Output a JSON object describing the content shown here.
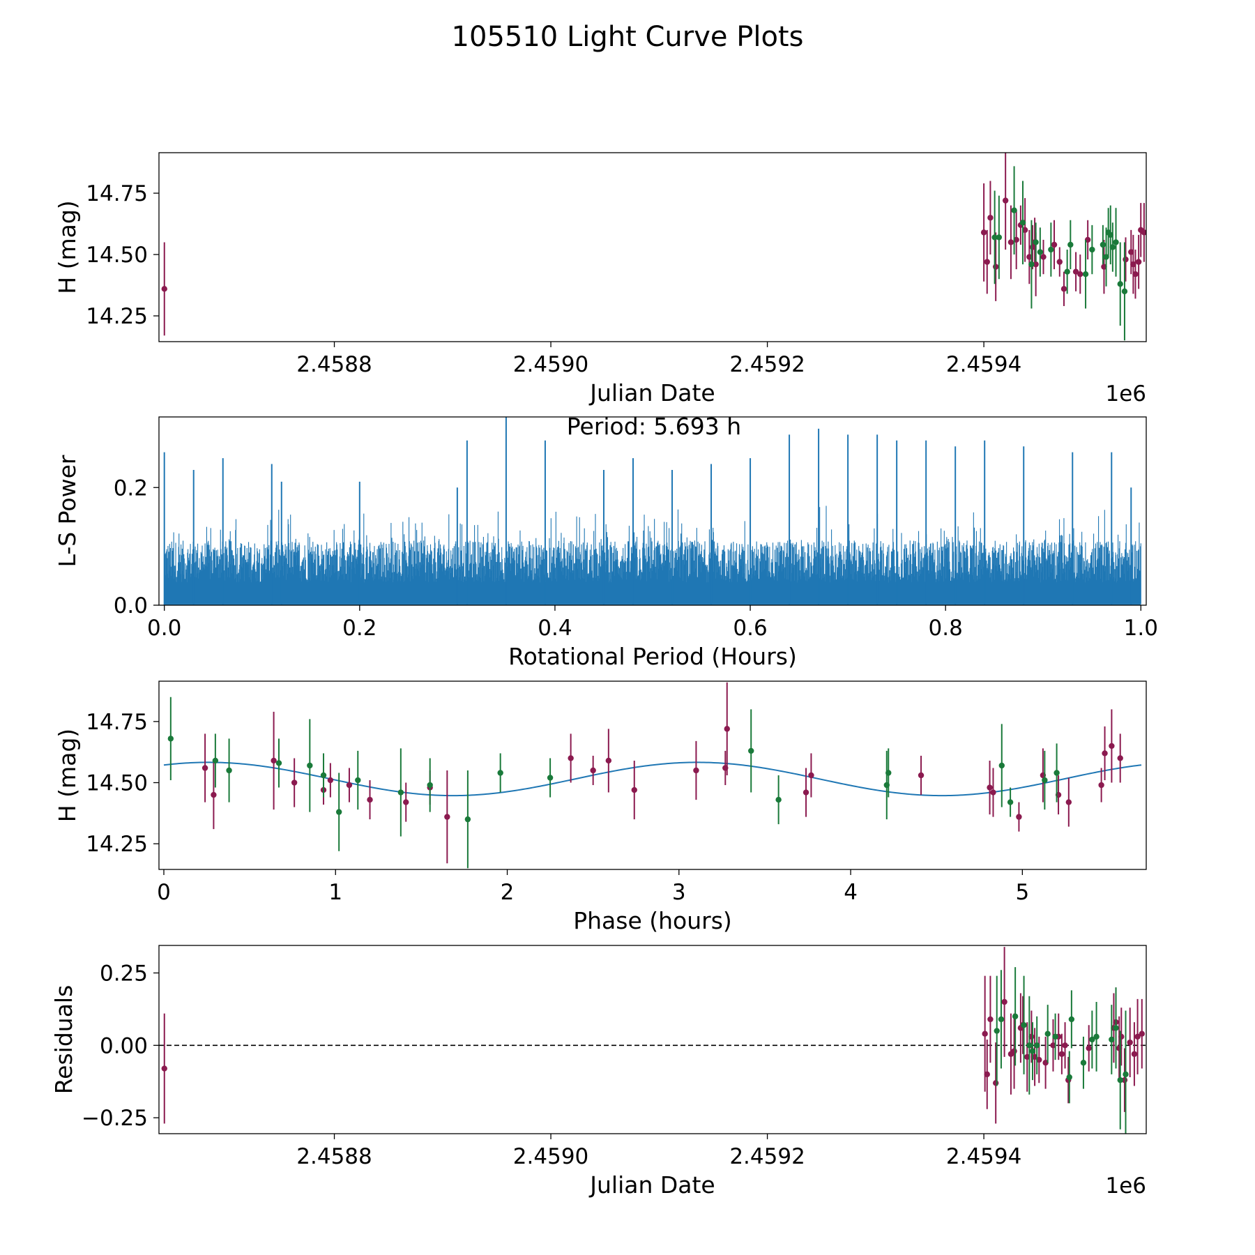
{
  "figure_title": "105510 Light Curve Plots",
  "colors": {
    "band_a": "#8b1a4f",
    "band_b": "#1a7a3a",
    "periodogram": "#1f77b4",
    "fit": "#1f77b4",
    "axes": "#000000"
  },
  "chart_data": [
    {
      "id": "lightcurve",
      "type": "scatter",
      "title": "",
      "xlabel": "Julian Date",
      "ylabel": "H (mag)",
      "x_offset_label": "1e6",
      "xlim": [
        2458638.0,
        2459550.0
      ],
      "ylim": [
        14.145,
        14.915
      ],
      "xticks": [
        2458800,
        2459000,
        2459200,
        2459400
      ],
      "xtick_labels": [
        "2.4588",
        "2.4590",
        "2.4592",
        "2.4594"
      ],
      "yticks": [
        14.25,
        14.5,
        14.75
      ],
      "ytick_labels": [
        "14.25",
        "14.50",
        "14.75"
      ],
      "series": [
        {
          "name": "band_a",
          "color": "#8b1a4f",
          "x": [
            2458643,
            2459400,
            2459403,
            2459406,
            2459411,
            2459420,
            2459425,
            2459430,
            2459434,
            2459438,
            2459442,
            2459445,
            2459447,
            2459448,
            2459455,
            2459465,
            2459470,
            2459474,
            2459485,
            2459489,
            2459496,
            2459511,
            2459531,
            2459536,
            2459538,
            2459540,
            2459543,
            2459545,
            2459548
          ],
          "y": [
            14.36,
            14.59,
            14.47,
            14.65,
            14.45,
            14.72,
            14.55,
            14.56,
            14.62,
            14.6,
            14.49,
            14.53,
            14.55,
            14.46,
            14.49,
            14.54,
            14.47,
            14.36,
            14.43,
            14.42,
            14.56,
            14.45,
            14.48,
            14.51,
            14.46,
            14.42,
            14.47,
            14.6,
            14.59
          ],
          "yerr": [
            0.19,
            0.2,
            0.13,
            0.15,
            0.14,
            0.2,
            0.15,
            0.12,
            0.08,
            0.13,
            0.11,
            0.09,
            0.1,
            0.13,
            0.07,
            0.1,
            0.06,
            0.07,
            0.08,
            0.08,
            0.08,
            0.11,
            0.09,
            0.09,
            0.12,
            0.1,
            0.11,
            0.11,
            0.12
          ]
        },
        {
          "name": "band_b",
          "color": "#1a7a3a",
          "x": [
            2459410,
            2459414,
            2459428,
            2459436,
            2459444,
            2459448,
            2459452,
            2459462,
            2459477,
            2459480,
            2459494,
            2459500,
            2459510,
            2459513,
            2459515,
            2459517,
            2459519,
            2459522,
            2459526,
            2459530
          ],
          "y": [
            14.57,
            14.57,
            14.68,
            14.63,
            14.46,
            14.55,
            14.51,
            14.52,
            14.43,
            14.54,
            14.42,
            14.52,
            14.54,
            14.49,
            14.59,
            14.58,
            14.53,
            14.55,
            14.38,
            14.35
          ],
          "yerr": [
            0.19,
            0.17,
            0.18,
            0.17,
            0.18,
            0.08,
            0.1,
            0.11,
            0.09,
            0.1,
            0.14,
            0.1,
            0.08,
            0.12,
            0.1,
            0.12,
            0.1,
            0.14,
            0.17,
            0.2
          ]
        }
      ]
    },
    {
      "id": "periodogram",
      "type": "line",
      "title": "Period: 5.693 h",
      "xlabel": "Rotational Period (Hours)",
      "ylabel": "L-S Power",
      "xlim": [
        -0.0055,
        1.0055
      ],
      "ylim": [
        0.0,
        0.32
      ],
      "xticks": [
        0.0,
        0.2,
        0.4,
        0.6,
        0.8,
        1.0
      ],
      "xtick_labels": [
        "0.0",
        "0.2",
        "0.4",
        "0.6",
        "0.8",
        "1.0"
      ],
      "yticks": [
        0.0,
        0.2
      ],
      "ytick_labels": [
        "0.0",
        "0.2"
      ],
      "x_range": [
        0.0,
        1.0
      ],
      "sample_count": 2400,
      "baseline_power": [
        0.0,
        0.11
      ],
      "peaks": [
        {
          "x": 0.0,
          "y": 0.26
        },
        {
          "x": 0.03,
          "y": 0.23
        },
        {
          "x": 0.06,
          "y": 0.25
        },
        {
          "x": 0.11,
          "y": 0.24
        },
        {
          "x": 0.12,
          "y": 0.21
        },
        {
          "x": 0.2,
          "y": 0.21
        },
        {
          "x": 0.3,
          "y": 0.2
        },
        {
          "x": 0.31,
          "y": 0.28
        },
        {
          "x": 0.35,
          "y": 0.32
        },
        {
          "x": 0.39,
          "y": 0.28
        },
        {
          "x": 0.45,
          "y": 0.23
        },
        {
          "x": 0.48,
          "y": 0.25
        },
        {
          "x": 0.52,
          "y": 0.23
        },
        {
          "x": 0.56,
          "y": 0.24
        },
        {
          "x": 0.6,
          "y": 0.25
        },
        {
          "x": 0.64,
          "y": 0.29
        },
        {
          "x": 0.67,
          "y": 0.3
        },
        {
          "x": 0.7,
          "y": 0.29
        },
        {
          "x": 0.73,
          "y": 0.29
        },
        {
          "x": 0.75,
          "y": 0.28
        },
        {
          "x": 0.78,
          "y": 0.28
        },
        {
          "x": 0.81,
          "y": 0.27
        },
        {
          "x": 0.84,
          "y": 0.28
        },
        {
          "x": 0.88,
          "y": 0.27
        },
        {
          "x": 0.93,
          "y": 0.26
        },
        {
          "x": 0.97,
          "y": 0.26
        },
        {
          "x": 0.99,
          "y": 0.2
        }
      ]
    },
    {
      "id": "phased",
      "type": "scatter",
      "title": "",
      "xlabel": "Phase (hours)",
      "ylabel": "H (mag)",
      "xlim": [
        -0.0284,
        5.7214
      ],
      "ylim": [
        14.145,
        14.915
      ],
      "xticks": [
        0,
        1,
        2,
        3,
        4,
        5
      ],
      "xtick_labels": [
        "0",
        "1",
        "2",
        "3",
        "4",
        "5"
      ],
      "yticks": [
        14.25,
        14.5,
        14.75
      ],
      "ytick_labels": [
        "14.25",
        "14.50",
        "14.75"
      ],
      "fit": {
        "period_hours": 5.693,
        "mean": 14.515,
        "amplitude": 0.068,
        "phase_peak_hours": 0.26,
        "curve_cycles": 2
      },
      "series": [
        {
          "name": "band_a",
          "color": "#8b1a4f",
          "x": [
            0.24,
            0.29,
            0.64,
            0.76,
            0.93,
            0.97,
            1.08,
            1.2,
            1.41,
            1.55,
            1.65,
            2.37,
            2.5,
            2.59,
            2.74,
            3.1,
            3.27,
            3.28,
            3.74,
            3.77,
            4.41,
            4.81,
            4.83,
            4.98,
            5.12,
            5.21,
            5.27,
            5.46,
            5.48,
            5.52,
            5.57
          ],
          "y": [
            14.56,
            14.45,
            14.59,
            14.5,
            14.47,
            14.51,
            14.49,
            14.43,
            14.42,
            14.48,
            14.36,
            14.6,
            14.55,
            14.59,
            14.47,
            14.55,
            14.56,
            14.72,
            14.46,
            14.53,
            14.53,
            14.48,
            14.46,
            14.36,
            14.53,
            14.45,
            14.42,
            14.49,
            14.62,
            14.65,
            14.6
          ],
          "yerr": [
            0.14,
            0.14,
            0.2,
            0.1,
            0.06,
            0.07,
            0.07,
            0.08,
            0.08,
            0.07,
            0.19,
            0.1,
            0.06,
            0.13,
            0.12,
            0.12,
            0.07,
            0.19,
            0.1,
            0.09,
            0.08,
            0.11,
            0.1,
            0.06,
            0.11,
            0.08,
            0.1,
            0.07,
            0.11,
            0.15,
            0.1
          ]
        },
        {
          "name": "band_b",
          "color": "#1a7a3a",
          "x": [
            0.04,
            0.3,
            0.38,
            0.67,
            0.85,
            0.93,
            1.02,
            1.13,
            1.38,
            1.55,
            1.77,
            1.96,
            2.25,
            3.42,
            3.58,
            4.21,
            4.22,
            4.88,
            4.93,
            5.13,
            5.2
          ],
          "y": [
            14.68,
            14.59,
            14.55,
            14.58,
            14.57,
            14.53,
            14.38,
            14.51,
            14.46,
            14.49,
            14.35,
            14.54,
            14.52,
            14.63,
            14.43,
            14.49,
            14.54,
            14.57,
            14.42,
            14.51,
            14.54
          ],
          "yerr": [
            0.17,
            0.11,
            0.13,
            0.1,
            0.19,
            0.09,
            0.16,
            0.12,
            0.18,
            0.11,
            0.2,
            0.08,
            0.08,
            0.17,
            0.1,
            0.14,
            0.1,
            0.17,
            0.06,
            0.12,
            0.12
          ]
        }
      ]
    },
    {
      "id": "residuals",
      "type": "scatter",
      "title": "",
      "xlabel": "Julian Date",
      "ylabel": "Residuals",
      "x_offset_label": "1e6",
      "xlim": [
        2458638.0,
        2459550.0
      ],
      "ylim": [
        -0.305,
        0.345
      ],
      "xticks": [
        2458800,
        2459000,
        2459200,
        2459400
      ],
      "xtick_labels": [
        "2.4588",
        "2.4590",
        "2.4592",
        "2.4594"
      ],
      "yticks": [
        -0.25,
        0.0,
        0.25
      ],
      "ytick_labels": [
        "−0.25",
        "0.00",
        "0.25"
      ],
      "zero_line": 0.0,
      "series": [
        {
          "name": "band_a",
          "color": "#8b1a4f",
          "x": [
            2458643,
            2459401,
            2459403,
            2459406,
            2459411,
            2459419,
            2459425,
            2459428,
            2459434,
            2459436,
            2459440,
            2459444,
            2459447,
            2459451,
            2459457,
            2459464,
            2459469,
            2459472,
            2459475,
            2459478,
            2459497,
            2459520,
            2459522,
            2459525,
            2459527,
            2459530,
            2459535,
            2459539,
            2459542,
            2459546
          ],
          "y": [
            -0.08,
            0.04,
            -0.1,
            0.09,
            -0.13,
            0.15,
            -0.03,
            -0.02,
            0.06,
            0.07,
            -0.04,
            0.03,
            -0.04,
            -0.05,
            -0.06,
            0.0,
            0.03,
            -0.03,
            0.0,
            -0.12,
            -0.01,
            0.06,
            0.08,
            -0.01,
            0.03,
            -0.12,
            0.01,
            -0.03,
            0.03,
            0.04
          ],
          "yerr": [
            0.19,
            0.2,
            0.12,
            0.15,
            0.14,
            0.19,
            0.14,
            0.13,
            0.12,
            0.1,
            0.12,
            0.09,
            0.1,
            0.08,
            0.09,
            0.09,
            0.08,
            0.07,
            0.08,
            0.08,
            0.08,
            0.12,
            0.12,
            0.11,
            0.1,
            0.11,
            0.12,
            0.11,
            0.13,
            0.12
          ]
        },
        {
          "name": "band_b",
          "color": "#1a7a3a",
          "x": [
            2459412,
            2459416,
            2459429,
            2459437,
            2459442,
            2459445,
            2459449,
            2459459,
            2459466,
            2459479,
            2459481,
            2459492,
            2459500,
            2459504,
            2459518,
            2459522,
            2459526,
            2459531
          ],
          "y": [
            0.05,
            0.09,
            0.1,
            0.07,
            0.0,
            -0.02,
            0.0,
            0.04,
            0.03,
            -0.11,
            0.09,
            -0.06,
            0.02,
            0.03,
            0.02,
            0.06,
            -0.12,
            -0.1
          ],
          "yerr": [
            0.19,
            0.17,
            0.17,
            0.17,
            0.17,
            0.1,
            0.1,
            0.1,
            0.08,
            0.09,
            0.1,
            0.09,
            0.1,
            0.12,
            0.12,
            0.14,
            0.17,
            0.22
          ]
        }
      ]
    }
  ]
}
